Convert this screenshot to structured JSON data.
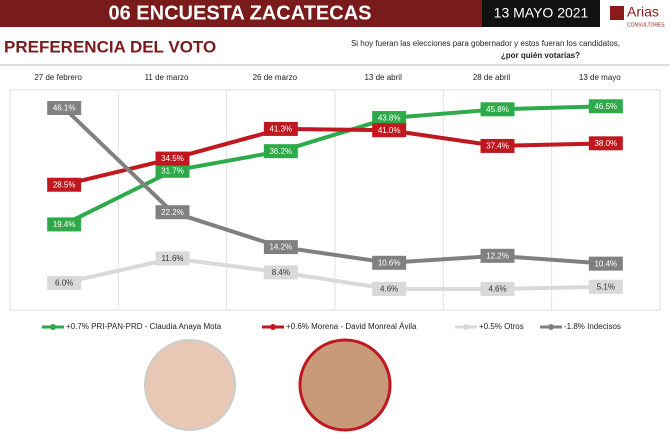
{
  "header": {
    "title": "06 ENCUESTA ZACATECAS",
    "date": "13 MAYO 2021",
    "logo": "Arias",
    "logo_sub": "CONSULTORES"
  },
  "chart_data": {
    "type": "line",
    "title": "PREFERENCIA DEL VOTO",
    "subtitle": [
      "Si hoy fueran las elecciones para gobernador y estos fueran los candidatos,",
      "¿por quién votarías?"
    ],
    "categories": [
      "27 de febrero",
      "11 de marzo",
      "26 de marzo",
      "13 de abril",
      "28 de abril",
      "13 de mayo"
    ],
    "grid": true,
    "series": [
      {
        "name": "+0.7% PRI-PAN-PRD - Claudia Anaya Mota",
        "color": "#2eaa4a",
        "values": [
          19.4,
          31.7,
          36.2,
          43.8,
          45.8,
          46.5
        ],
        "value_labels": [
          "19.4%",
          "31.7%",
          "36.2%",
          "43.8%",
          "45.8%",
          "46.5%"
        ]
      },
      {
        "name": "+0.6% Morena - David Monreal Ávila",
        "color": "#c0181f",
        "values": [
          28.5,
          34.5,
          41.3,
          41.0,
          37.4,
          38.0
        ],
        "value_labels": [
          "28.5%",
          "34.5%",
          "41.3%",
          "41.0%",
          "37.4%",
          "38.0%"
        ]
      },
      {
        "name": "+0.5% Otros",
        "color": "#d9d9d9",
        "values": [
          6.0,
          11.6,
          8.4,
          4.6,
          4.6,
          5.1
        ],
        "value_labels": [
          "6.0%",
          "11.6%",
          "8.4%",
          "4.6%",
          "4.6%",
          "5.1%"
        ]
      },
      {
        "name": "-1.8% Indecisos",
        "color": "#808080",
        "values": [
          46.1,
          22.2,
          14.2,
          10.6,
          12.2,
          10.4
        ],
        "value_labels": [
          "46.1%",
          "22.2%",
          "14.2%",
          "10.6%",
          "12.2%",
          "10.4%"
        ]
      }
    ]
  }
}
